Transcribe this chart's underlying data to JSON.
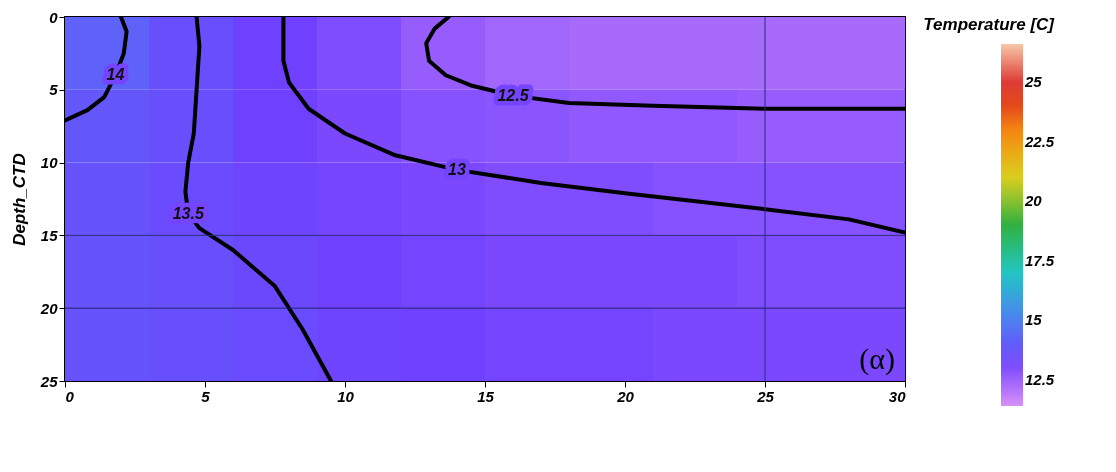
{
  "chart_data": {
    "type": "heatmap",
    "ylabel": "Depth_CTD",
    "clabel": "Temperature [C]",
    "x": [
      1.5,
      4.5,
      7.5,
      10.5,
      13.5,
      16.5,
      19.5,
      22.5,
      25.5,
      28.5
    ],
    "y": [
      2.5,
      7.5,
      12.5,
      17.5,
      22.5
    ],
    "cells": [
      [
        14.2,
        13.7,
        13.3,
        13.0,
        12.6,
        12.4,
        12.3,
        12.3,
        12.3,
        12.3
      ],
      [
        13.9,
        13.7,
        13.3,
        13.1,
        12.9,
        12.8,
        12.7,
        12.7,
        12.6,
        12.6
      ],
      [
        13.8,
        13.6,
        13.4,
        13.2,
        13.1,
        13.0,
        13.0,
        12.9,
        12.9,
        12.9
      ],
      [
        13.8,
        13.7,
        13.5,
        13.3,
        13.2,
        13.1,
        13.1,
        13.1,
        13.0,
        13.0
      ],
      [
        13.8,
        13.7,
        13.6,
        13.4,
        13.3,
        13.2,
        13.2,
        13.1,
        13.1,
        13.1
      ]
    ],
    "clim": [
      11.4,
      26.6
    ],
    "cticks": [
      12.5,
      15,
      17.5,
      20,
      22.5,
      25
    ],
    "xlim": [
      0,
      30
    ],
    "xticks": [
      0,
      5,
      10,
      15,
      20,
      25,
      30
    ],
    "ylim": [
      25,
      0
    ],
    "yticks": [
      0,
      5,
      10,
      15,
      20,
      25
    ],
    "series": [
      {
        "type": "line",
        "name": "14",
        "color": "#000000",
        "x": [
          2.0,
          2.2,
          2.1,
          1.8,
          1.4,
          0.8,
          0.0
        ],
        "values": [
          0,
          1,
          2.5,
          4,
          5.5,
          6.4,
          7.1
        ]
      },
      {
        "type": "line",
        "name": "13.5",
        "color": "#000000",
        "x": [
          4.7,
          4.8,
          4.7,
          4.6,
          4.4,
          4.3,
          4.4,
          4.8,
          6.0,
          7.5,
          8.5,
          9.5
        ],
        "values": [
          0,
          2,
          5,
          8,
          10,
          12,
          13.5,
          14.5,
          16,
          18.5,
          21.5,
          25
        ]
      },
      {
        "type": "line",
        "name": "13",
        "color": "#000000",
        "x": [
          7.8,
          7.8,
          8.0,
          8.7,
          10.0,
          11.8,
          14.0,
          17.0,
          20.0,
          25.0,
          28.0,
          30.0
        ],
        "values": [
          0,
          3,
          4.5,
          6.3,
          8.0,
          9.5,
          10.5,
          11.4,
          12.1,
          13.2,
          13.9,
          14.8
        ]
      },
      {
        "type": "line",
        "name": "12.5",
        "color": "#000000",
        "x": [
          13.7,
          13.2,
          12.9,
          13.0,
          13.6,
          14.5,
          16.0,
          18.0,
          21.0,
          25.0,
          28.0,
          30.0
        ],
        "values": [
          0,
          0.8,
          1.8,
          3.0,
          4.0,
          4.7,
          5.4,
          5.9,
          6.1,
          6.3,
          6.3,
          6.3
        ]
      }
    ],
    "ref_lines": [
      {
        "axis": "y",
        "value": 15,
        "color": "#2a2a80"
      },
      {
        "axis": "y",
        "value": 20,
        "color": "#1a1a70"
      },
      {
        "axis": "x",
        "value": 25,
        "color": "#2a2a80"
      }
    ],
    "annotations": [
      "(α)"
    ],
    "grid": false
  }
}
